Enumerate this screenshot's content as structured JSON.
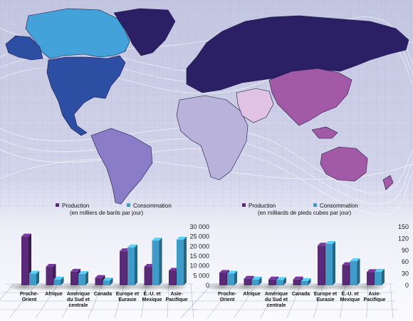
{
  "colors": {
    "production": "#5a2a78",
    "consumption": "#3f9cc9",
    "map_bg": "#c9cce2"
  },
  "regions": [
    {
      "name": "north-america",
      "color": "#2c4ea3"
    },
    {
      "name": "canada",
      "color": "#43a2da"
    },
    {
      "name": "greenland",
      "color": "#2b1f66"
    },
    {
      "name": "south-america",
      "color": "#8a7cc6"
    },
    {
      "name": "africa",
      "color": "#b9b3dc"
    },
    {
      "name": "eurasia",
      "color": "#2b1f66"
    },
    {
      "name": "middle-east",
      "color": "#e0c2e4"
    },
    {
      "name": "asia-pacific",
      "color": "#a35aa6"
    }
  ],
  "chart_data": [
    {
      "type": "bar",
      "legend": {
        "production": "Production",
        "consumption": "Consommation"
      },
      "subtitle": "(en milliers de barils par jour)",
      "categories": [
        "Proche-\nOrient",
        "Afrique",
        "Amérique\ndu Sud et\ncentrale",
        "Canada",
        "Europe et\nEurasie",
        "É.-U. et\nMexique",
        "Asie-\nPacifique"
      ],
      "series": [
        {
          "name": "Production",
          "values": [
            25000,
            9500,
            7000,
            3800,
            17500,
            9500,
            7500
          ]
        },
        {
          "name": "Consommation",
          "values": [
            6000,
            3000,
            5800,
            2500,
            19500,
            23000,
            23500
          ]
        }
      ],
      "yticks": [
        "30 000",
        "25 000",
        "20 000",
        "15 000",
        "10 000",
        "5 000",
        "0"
      ],
      "ylim": [
        0,
        30000
      ]
    },
    {
      "type": "bar",
      "legend": {
        "production": "Production",
        "consumption": "Consommation"
      },
      "subtitle": "(en milliards de pieds cubes par jour)",
      "categories": [
        "Proche-\nOrient",
        "Afrique",
        "Amérique\ndu Sud et\ncentrale",
        "Canada",
        "Europe et\nEurasie",
        "É.-U. et\nMexique",
        "Asie-\nPacifique"
      ],
      "series": [
        {
          "name": "Production",
          "values": [
            32,
            17,
            15,
            15,
            102,
            52,
            34
          ]
        },
        {
          "name": "Consommation",
          "values": [
            30,
            15,
            14,
            11,
            106,
            62,
            35
          ]
        }
      ],
      "yticks": [
        "150",
        "120",
        "90",
        "60",
        "30",
        "0"
      ],
      "ylim": [
        0,
        150
      ]
    }
  ]
}
